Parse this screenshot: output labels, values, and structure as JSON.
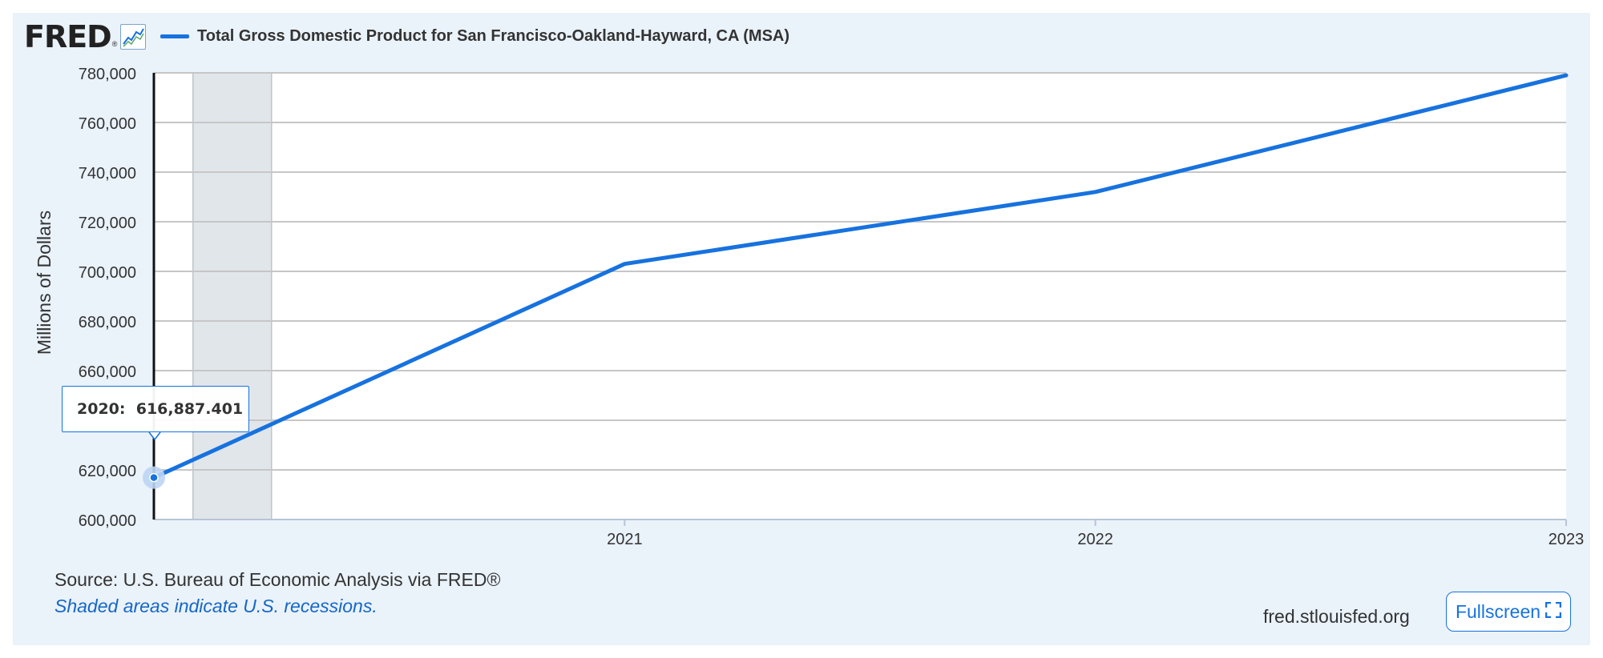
{
  "header": {
    "logo_text": "FRED",
    "logo_reg": "®",
    "legend_label": "Total Gross Domestic Product for San Francisco-Oakland-Hayward, CA (MSA)"
  },
  "tooltip": {
    "year": "2020:",
    "value": "616,887.401"
  },
  "footer": {
    "source": "Source: U.S. Bureau of Economic Analysis via FRED®",
    "note": "Shaded areas indicate U.S. recessions.",
    "site": "fred.stlouisfed.org",
    "fullscreen_label": "Fullscreen"
  },
  "colors": {
    "line": "#1772de",
    "recession": "#e1e6eb",
    "panel": "#eaf2fa"
  },
  "chart_data": {
    "type": "line",
    "title": "Total Gross Domestic Product for San Francisco-Oakland-Hayward, CA (MSA)",
    "ylabel": "Millions of Dollars",
    "xlabel": "",
    "x": [
      2020,
      2021,
      2022,
      2023
    ],
    "series": [
      {
        "name": "Total Gross Domestic Product for San Francisco-Oakland-Hayward, CA (MSA)",
        "values": [
          616887.401,
          703000,
          732000,
          779000
        ]
      }
    ],
    "ylim": [
      600000,
      780000
    ],
    "xlim": [
      2020,
      2023
    ],
    "yticks": [
      600000,
      620000,
      640000,
      660000,
      680000,
      700000,
      720000,
      740000,
      760000,
      780000
    ],
    "ytick_labels": [
      "600,000",
      "620,000",
      "",
      "660,000",
      "680,000",
      "700,000",
      "720,000",
      "740,000",
      "760,000",
      "780,000"
    ],
    "xticks": [
      2021,
      2022,
      2023
    ],
    "xtick_labels": [
      "2021",
      "2022",
      "2023"
    ],
    "recessions": [
      [
        2020.083,
        2020.25
      ]
    ],
    "grid": true,
    "legend": "top-left"
  }
}
